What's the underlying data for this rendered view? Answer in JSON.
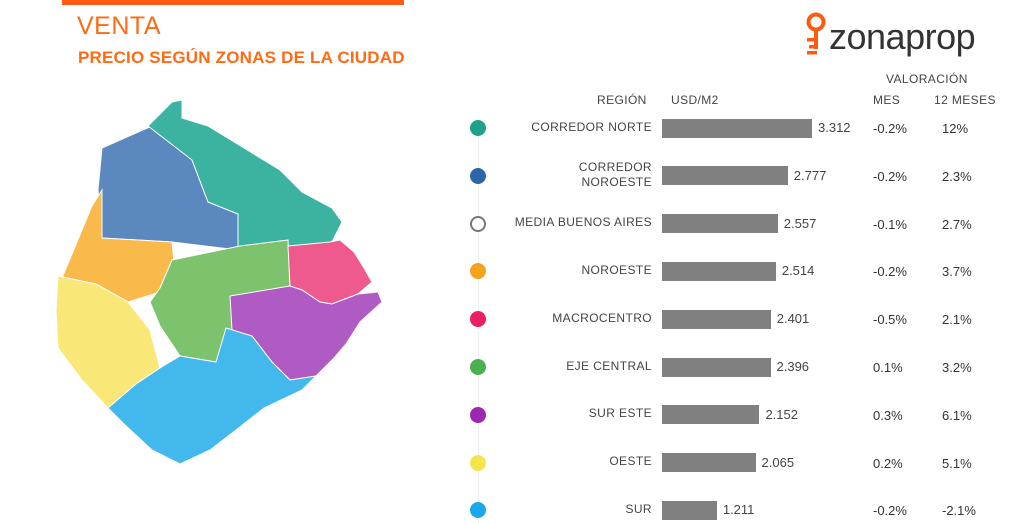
{
  "header": {
    "title": "VENTA",
    "subtitle": "PRECIO SEGÚN ZONAS DE LA CIUDAD"
  },
  "logo": {
    "text": "zonaprop",
    "icon": "key-pin-icon",
    "color": "#ff5a14"
  },
  "columns": {
    "region": "REGIÓN",
    "price": "USD/M2",
    "valuation": "VALORACIÓN",
    "month": "MES",
    "year": "12 MESES"
  },
  "chart_data": {
    "type": "bar",
    "orientation": "horizontal",
    "categories": [
      "CORREDOR NORTE",
      "CORREDOR NOROESTE",
      "MEDIA BUENOS AIRES",
      "NOROESTE",
      "MACROCENTRO",
      "EJE CENTRAL",
      "SUR ESTE",
      "OESTE",
      "SUR"
    ],
    "category_lines": [
      [
        "CORREDOR NORTE"
      ],
      [
        "CORREDOR",
        "NOROESTE"
      ],
      [
        "MEDIA BUENOS AIRES"
      ],
      [
        "NOROESTE"
      ],
      [
        "MACROCENTRO"
      ],
      [
        "EJE CENTRAL"
      ],
      [
        "SUR ESTE"
      ],
      [
        "OESTE"
      ],
      [
        "SUR"
      ]
    ],
    "values": [
      3312,
      2777,
      2557,
      2514,
      2401,
      2396,
      2152,
      2065,
      1211
    ],
    "value_labels": [
      "3.312",
      "2.777",
      "2.557",
      "2.514",
      "2.401",
      "2.396",
      "2.152",
      "2.065",
      "1.211"
    ],
    "mes": [
      "-0.2%",
      "-0.2%",
      "-0.1%",
      "-0.2%",
      "-0.5%",
      "0.1%",
      "0.3%",
      "0.2%",
      "-0.2%"
    ],
    "doce_meses": [
      "12%",
      "2.3%",
      "2.7%",
      "3.7%",
      "2.1%",
      "3.2%",
      "6.1%",
      "5.1%",
      "-2.1%"
    ],
    "colors": [
      "#1fa28a",
      "#2c66a8",
      "#ffffff",
      "#f5a31c",
      "#e91e63",
      "#4caf50",
      "#9c27b0",
      "#f5e54b",
      "#1aa9e8"
    ],
    "bar_color": "#808080",
    "xlim": [
      0,
      3312
    ]
  },
  "map": {
    "zones": [
      {
        "name": "CORREDOR NORTE",
        "color": "#3bb3a0"
      },
      {
        "name": "CORREDOR NOROESTE",
        "color": "#5b88bf"
      },
      {
        "name": "NOROESTE",
        "color": "#f9b94b"
      },
      {
        "name": "MACROCENTRO",
        "color": "#ee5a8d"
      },
      {
        "name": "EJE CENTRAL",
        "color": "#7dc36e"
      },
      {
        "name": "SUR ESTE",
        "color": "#b05ac3"
      },
      {
        "name": "OESTE",
        "color": "#f9e878"
      },
      {
        "name": "SUR",
        "color": "#43b8ec"
      }
    ]
  }
}
